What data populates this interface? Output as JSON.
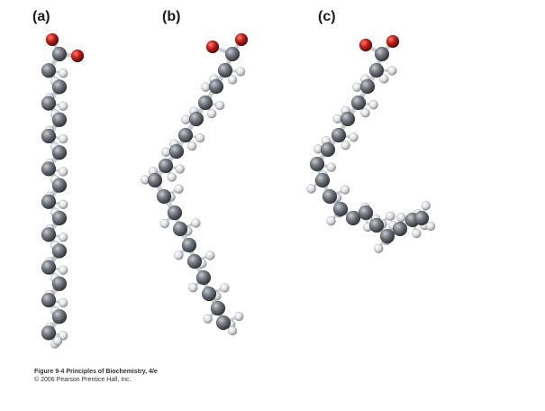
{
  "panels": [
    {
      "label": "(a)"
    },
    {
      "label": "(b)"
    },
    {
      "label": "(c)"
    }
  ],
  "caption": {
    "line1": "Figure 9-4  Principles of Biochemistry, 4/e",
    "line2": "© 2006 Pearson Prentice Hall, Inc."
  },
  "colors": {
    "oxygen": "#b01818",
    "carbon": "#6c7078",
    "hydrogen": "#e4e6ea"
  }
}
